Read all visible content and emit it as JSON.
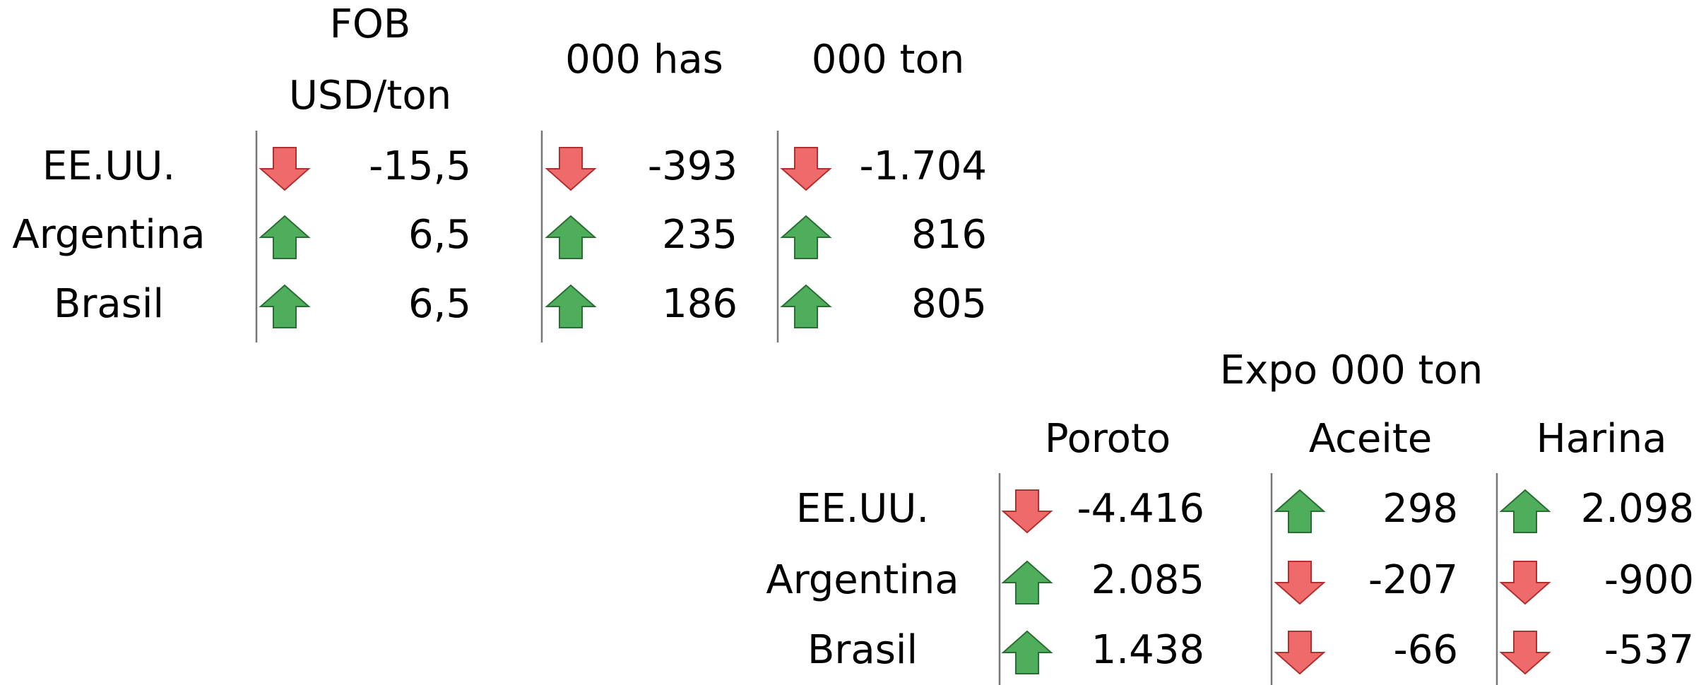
{
  "table1": {
    "headers": [
      [
        "FOB",
        "USD/ton"
      ],
      [
        "000 has"
      ],
      [
        "000 ton"
      ]
    ],
    "rows": [
      {
        "label": "EE.UU.",
        "values": [
          "-15,5",
          "-393",
          "-1.704"
        ]
      },
      {
        "label": "Argentina",
        "values": [
          "6,5",
          "235",
          "816"
        ]
      },
      {
        "label": "Brasil",
        "values": [
          "6,5",
          "186",
          "805"
        ]
      }
    ]
  },
  "table2": {
    "title": "Expo 000 ton",
    "headers": [
      "Poroto",
      "Aceite",
      "Harina"
    ],
    "rows": [
      {
        "label": "EE.UU.",
        "values": [
          "-4.416",
          "298",
          "2.098"
        ]
      },
      {
        "label": "Argentina",
        "values": [
          "2.085",
          "-207",
          "-900"
        ]
      },
      {
        "label": "Brasil",
        "values": [
          "1.438",
          "-66",
          "-537"
        ]
      }
    ]
  }
}
